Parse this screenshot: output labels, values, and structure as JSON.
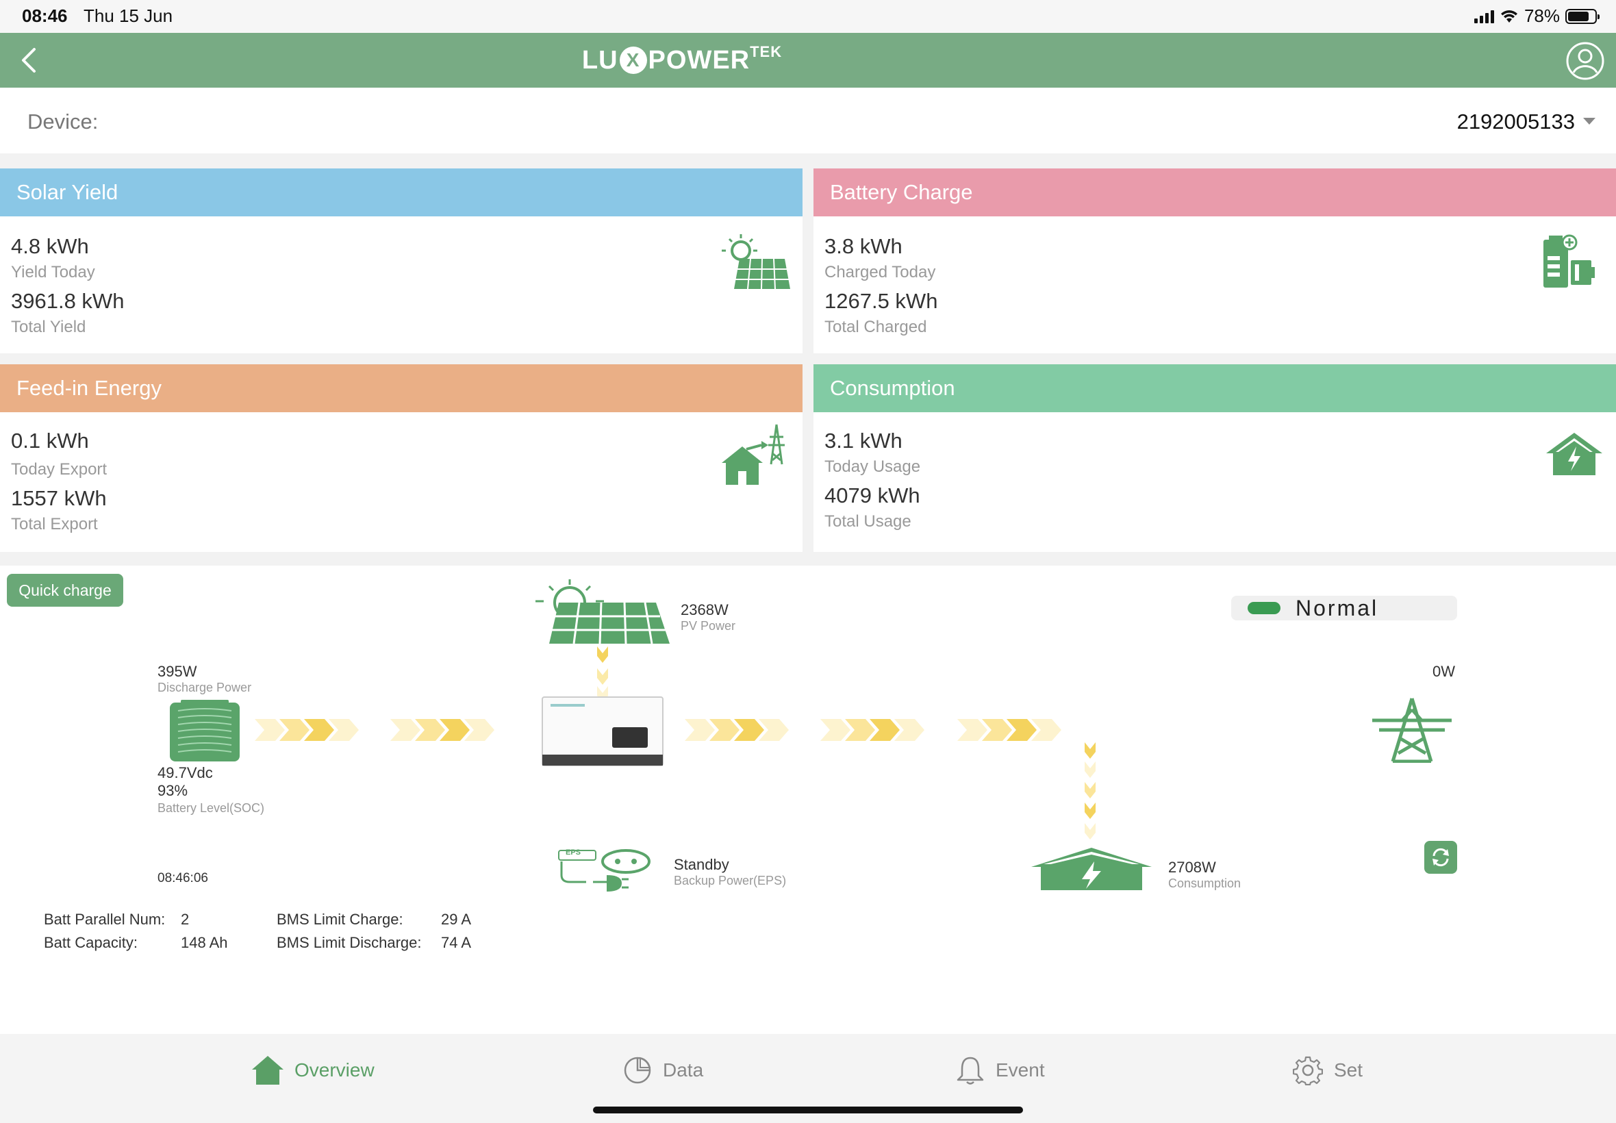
{
  "status_bar": {
    "time": "08:46",
    "date": "Thu 15 Jun",
    "battery_pct": "78%"
  },
  "app_bar": {
    "logo_left": "LU",
    "logo_x": "X",
    "logo_right": "POWER",
    "logo_sup": "TEK"
  },
  "device": {
    "label": "Device:",
    "value": "2192005133"
  },
  "cards": {
    "solar": {
      "title": "Solar Yield",
      "today_value": "4.8 kWh",
      "today_label": "Yield Today",
      "total_value": "3961.8 kWh",
      "total_label": "Total Yield",
      "color": "#8ac7e6"
    },
    "battery": {
      "title": "Battery Charge",
      "today_value": "3.8 kWh",
      "today_label": "Charged Today",
      "total_value": "1267.5 kWh",
      "total_label": "Total Charged",
      "color": "#e99bab"
    },
    "feedin": {
      "title": "Feed-in Energy",
      "today_value": "0.1 kWh",
      "today_label": "Today Export",
      "total_value": "1557 kWh",
      "total_label": "Total Export",
      "color": "#eaaf86"
    },
    "consumption": {
      "title": "Consumption",
      "today_value": "3.1 kWh",
      "today_label": "Today Usage",
      "total_value": "4079 kWh",
      "total_label": "Total Usage",
      "color": "#82cba4"
    }
  },
  "flow": {
    "quick_charge": "Quick charge",
    "pv_power_value": "2368W",
    "pv_power_label": "PV Power",
    "status": "Normal",
    "grid_power": "0W",
    "discharge_value": "395W",
    "discharge_label": "Discharge Power",
    "battery_voltage": "49.7Vdc",
    "battery_soc": "93%",
    "battery_soc_label": "Battery Level(SOC)",
    "timestamp": "08:46:06",
    "eps_status": "Standby",
    "eps_label": "Backup Power(EPS)",
    "eps_tag": "EPS",
    "consumption_value": "2708W",
    "consumption_label": "Consumption"
  },
  "batt_info": {
    "parallel_label": "Batt Parallel Num:",
    "parallel_value": "2",
    "capacity_label": "Batt Capacity:",
    "capacity_value": "148 Ah",
    "bms_charge_label": "BMS Limit Charge:",
    "bms_charge_value": "29 A",
    "bms_discharge_label": "BMS Limit Discharge:",
    "bms_discharge_value": "74 A"
  },
  "bottom_nav": {
    "overview": "Overview",
    "data": "Data",
    "event": "Event",
    "set": "Set"
  },
  "colors": {
    "brand_green": "#78ab84",
    "icon_green": "#5aa46a",
    "flow_yellow": "#f4d35e"
  }
}
